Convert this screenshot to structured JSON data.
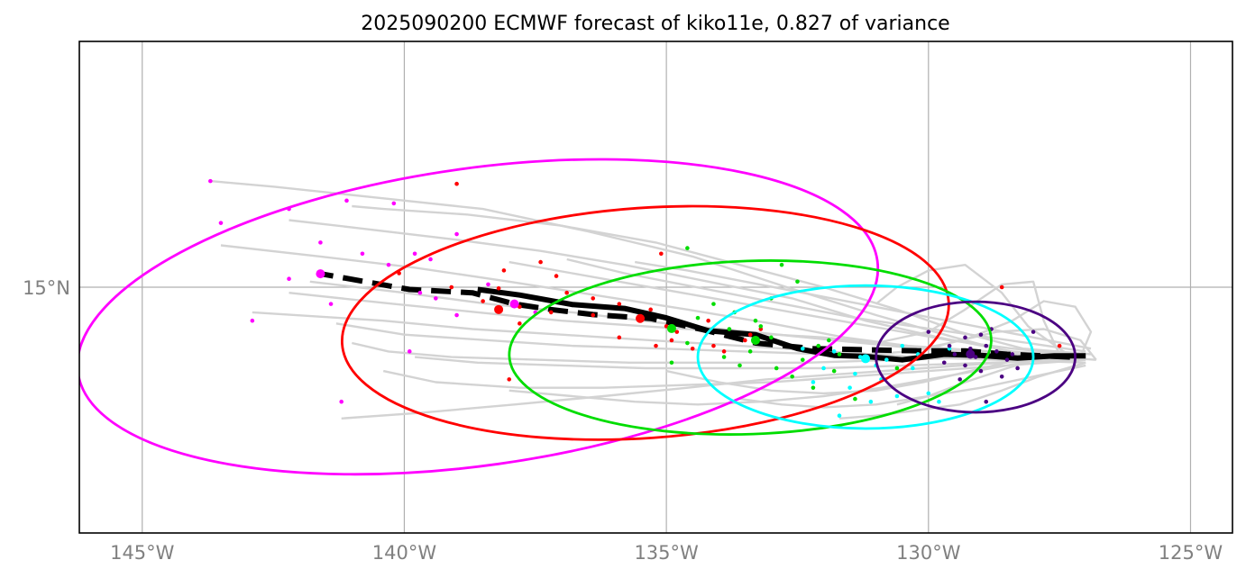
{
  "chart_data": {
    "type": "scatter",
    "title": "2025090200 ECMWF forecast of kiko11e, 0.827 of variance",
    "xlim": [
      -146.2,
      -124.2
    ],
    "ylim": [
      10.6,
      19.4
    ],
    "grid": true,
    "x_ticks": [
      {
        "value": -145,
        "label": "145°W"
      },
      {
        "value": -140,
        "label": "140°W"
      },
      {
        "value": -135,
        "label": "135°W"
      },
      {
        "value": -130,
        "label": "130°W"
      },
      {
        "value": -125,
        "label": "125°W"
      }
    ],
    "y_ticks": [
      {
        "value": 15,
        "label": "15°N"
      }
    ],
    "mean_track": {
      "color": "#000000",
      "x": [
        -127.0,
        -127.6,
        -128.3,
        -129.0,
        -129.7,
        -130.5,
        -131.2,
        -131.8,
        -132.5,
        -133.3,
        -134.2,
        -135.0,
        -135.8,
        -136.8,
        -137.8,
        -138.6
      ],
      "y": [
        13.77,
        13.77,
        13.73,
        13.78,
        13.8,
        13.7,
        13.76,
        13.78,
        13.9,
        14.15,
        14.22,
        14.45,
        14.62,
        14.69,
        14.86,
        14.96
      ]
    },
    "dashed_track": {
      "color": "#000000",
      "x": [
        -127.3,
        -128.5,
        -129.3,
        -130.2,
        -131.2,
        -132.2,
        -133.3,
        -134.3,
        -135.3,
        -136.4,
        -137.2,
        -137.9,
        -138.7,
        -139.9,
        -141.6
      ],
      "y": [
        13.75,
        13.8,
        13.86,
        13.86,
        13.88,
        13.9,
        14.0,
        14.24,
        14.44,
        14.51,
        14.6,
        14.7,
        14.9,
        14.96,
        15.24
      ]
    },
    "ensemble_members": {
      "color": "#d3d3d3",
      "tracks": [
        {
          "x": [
            -126.8,
            -128.3,
            -129.5,
            -131.0,
            -132.7,
            -134.5,
            -136.5,
            -138.5,
            -140.5,
            -142.5,
            -143.7
          ],
          "y": [
            13.7,
            13.8,
            14.1,
            14.5,
            15.0,
            15.55,
            16.0,
            16.4,
            16.6,
            16.8,
            16.9
          ]
        },
        {
          "x": [
            -126.9,
            -128.2,
            -129.4,
            -130.6,
            -132.0,
            -133.6,
            -135.2,
            -137.0,
            -138.8,
            -140.4,
            -141.0
          ],
          "y": [
            13.8,
            13.9,
            14.2,
            14.6,
            15.0,
            15.4,
            15.8,
            16.1,
            16.3,
            16.4,
            16.45
          ]
        },
        {
          "x": [
            -127.0,
            -128.4,
            -129.8,
            -131.2,
            -132.6,
            -134.2,
            -135.8,
            -137.4,
            -139.0,
            -140.8,
            -142.2
          ],
          "y": [
            13.75,
            13.85,
            14.1,
            14.4,
            14.8,
            15.1,
            15.4,
            15.65,
            15.85,
            16.05,
            16.2
          ]
        },
        {
          "x": [
            -127.1,
            -128.6,
            -130.0,
            -131.6,
            -133.0,
            -134.6,
            -136.3,
            -138.0,
            -139.8,
            -141.6,
            -143.5
          ],
          "y": [
            13.7,
            13.75,
            13.9,
            14.1,
            14.35,
            14.6,
            14.85,
            15.1,
            15.35,
            15.55,
            15.75
          ]
        },
        {
          "x": [
            -127.2,
            -128.7,
            -130.2,
            -131.8,
            -133.4,
            -135.0,
            -136.8,
            -138.4,
            -140.0,
            -141.8
          ],
          "y": [
            13.75,
            13.8,
            13.9,
            14.05,
            14.2,
            14.35,
            14.55,
            14.7,
            14.9,
            15.1
          ]
        },
        {
          "x": [
            -127.2,
            -128.8,
            -130.4,
            -132.0,
            -133.8,
            -135.4,
            -137.0,
            -138.6,
            -140.2,
            -142.2
          ],
          "y": [
            13.8,
            13.85,
            13.95,
            14.1,
            14.2,
            14.3,
            14.4,
            14.55,
            14.7,
            14.9
          ]
        },
        {
          "x": [
            -127.0,
            -128.6,
            -130.2,
            -131.9,
            -133.6,
            -135.3,
            -137.0,
            -138.7,
            -140.4,
            -142.9
          ],
          "y": [
            13.65,
            13.7,
            13.75,
            13.85,
            13.95,
            14.05,
            14.15,
            14.25,
            14.4,
            14.55
          ]
        },
        {
          "x": [
            -127.1,
            -128.7,
            -130.3,
            -131.9,
            -133.5,
            -135.1,
            -136.8,
            -138.4,
            -140.0,
            -141.3
          ],
          "y": [
            13.7,
            13.7,
            13.75,
            13.8,
            13.85,
            13.9,
            13.95,
            14.05,
            14.15,
            14.35
          ]
        },
        {
          "x": [
            -127.3,
            -128.9,
            -130.6,
            -132.3,
            -134.0,
            -135.7,
            -137.4,
            -139.1,
            -140.3,
            -141.0
          ],
          "y": [
            13.75,
            13.75,
            13.7,
            13.65,
            13.65,
            13.65,
            13.7,
            13.75,
            13.85,
            14.0
          ]
        },
        {
          "x": [
            -127.2,
            -128.8,
            -130.4,
            -132.0,
            -133.7,
            -135.4,
            -137.0,
            -138.6,
            -139.8
          ],
          "y": [
            13.7,
            13.65,
            13.6,
            13.55,
            13.55,
            13.55,
            13.6,
            13.65,
            13.75
          ]
        },
        {
          "x": [
            -127.0,
            -128.5,
            -130.0,
            -131.5,
            -133.0,
            -134.6,
            -136.2,
            -137.8,
            -139.4,
            -140.4
          ],
          "y": [
            13.7,
            13.6,
            13.5,
            13.4,
            13.3,
            13.25,
            13.2,
            13.2,
            13.3,
            13.5
          ]
        },
        {
          "x": [
            -127.1,
            -128.6,
            -130.1,
            -131.6,
            -133.1,
            -134.6,
            -136.2,
            -137.9,
            -139.7,
            -141.2
          ],
          "y": [
            13.75,
            13.65,
            13.55,
            13.45,
            13.35,
            13.2,
            13.05,
            12.9,
            12.75,
            12.65
          ]
        },
        {
          "x": [
            -127.3,
            -128.5,
            -129.7,
            -130.9,
            -132.0,
            -133.2,
            -134.4,
            -135.6,
            -136.8,
            -138.0
          ],
          "y": [
            13.8,
            13.6,
            13.4,
            13.2,
            13.05,
            12.95,
            12.9,
            12.95,
            13.05,
            13.15
          ]
        },
        {
          "x": [
            -127.4,
            -128.3,
            -129.2,
            -130.1,
            -131.0,
            -132.0,
            -133.0,
            -134.0,
            -135.0
          ],
          "y": [
            13.85,
            13.7,
            13.5,
            13.3,
            13.15,
            13.1,
            13.15,
            13.3,
            13.5
          ]
        },
        {
          "x": [
            -126.9,
            -128.0,
            -129.1,
            -130.2,
            -131.3,
            -132.4,
            -133.5,
            -134.6,
            -135.6
          ],
          "y": [
            13.9,
            14.1,
            14.3,
            14.5,
            14.7,
            14.9,
            15.1,
            15.3,
            15.45
          ]
        },
        {
          "x": [
            -127.0,
            -128.1,
            -129.2,
            -130.3,
            -131.4,
            -132.5,
            -133.6,
            -134.7,
            -135.8,
            -136.9
          ],
          "y": [
            13.85,
            14.0,
            14.15,
            14.3,
            14.45,
            14.65,
            14.85,
            15.05,
            15.25,
            15.5
          ]
        },
        {
          "x": [
            -127.2,
            -128.4,
            -129.6,
            -130.8,
            -132.0,
            -133.2,
            -134.4,
            -135.6,
            -136.8,
            -138.0
          ],
          "y": [
            13.8,
            13.9,
            14.05,
            14.25,
            14.45,
            14.65,
            14.85,
            15.05,
            15.25,
            15.45
          ]
        },
        {
          "x": [
            -127.2,
            -128.1,
            -128.6,
            -129.3,
            -130.0,
            -130.6,
            -131.0
          ],
          "y": [
            13.7,
            14.3,
            14.9,
            15.4,
            15.3,
            15.0,
            14.7
          ]
        },
        {
          "x": [
            -127.5,
            -127.8,
            -128.0,
            -128.6,
            -129.3,
            -130.0,
            -131.0
          ],
          "y": [
            13.8,
            14.4,
            15.1,
            15.05,
            14.6,
            14.2,
            14.0
          ]
        },
        {
          "x": [
            -127.1,
            -126.9,
            -127.2,
            -127.8,
            -128.4,
            -129.2,
            -130.0
          ],
          "y": [
            13.75,
            14.2,
            14.65,
            14.75,
            14.4,
            14.1,
            13.9
          ]
        },
        {
          "x": [
            -126.8,
            -127.1,
            -127.8,
            -128.7,
            -129.6,
            -130.4,
            -131.1
          ],
          "y": [
            13.7,
            14.05,
            14.25,
            14.2,
            14.0,
            13.85,
            13.8
          ]
        },
        {
          "x": [
            -127.0,
            -128.0,
            -129.0,
            -130.0,
            -131.0,
            -132.0,
            -132.8,
            -133.6
          ],
          "y": [
            13.6,
            13.4,
            13.2,
            13.05,
            12.9,
            12.85,
            12.9,
            13.0
          ]
        },
        {
          "x": [
            -127.0,
            -127.9,
            -128.6,
            -129.4,
            -130.2,
            -131.0,
            -131.7
          ],
          "y": [
            13.65,
            13.4,
            13.15,
            12.9,
            12.8,
            12.7,
            12.65
          ]
        },
        {
          "x": [
            -127.6,
            -128.5,
            -129.3,
            -130.0,
            -130.6
          ],
          "y": [
            13.8,
            13.55,
            13.3,
            13.05,
            12.9
          ]
        }
      ]
    },
    "forecast_points": [
      {
        "name": "magenta",
        "color": "#ff00ff",
        "x": [
          -143.7,
          -142.2,
          -141.1,
          -140.2,
          -139.0,
          -143.5,
          -141.6,
          -140.8,
          -139.5,
          -142.2,
          -141.4,
          -142.9,
          -139.9,
          -141.2,
          -139.7,
          -139.4,
          -138.4,
          -137.5,
          -139.0,
          -139.8,
          -140.3
        ],
        "y": [
          16.9,
          16.4,
          16.55,
          16.5,
          15.95,
          16.15,
          15.8,
          15.6,
          15.5,
          15.15,
          14.7,
          14.4,
          13.85,
          12.95,
          14.9,
          14.8,
          15.05,
          14.55,
          14.5,
          15.6,
          15.4
        ]
      },
      {
        "name": "red",
        "color": "#ff0000",
        "x": [
          -139.0,
          -135.1,
          -137.4,
          -138.1,
          -137.1,
          -138.2,
          -136.9,
          -136.4,
          -135.9,
          -135.3,
          -134.2,
          -133.2,
          -133.5,
          -134.1,
          -134.8,
          -135.0,
          -136.4,
          -137.2,
          -137.8,
          -138.5,
          -139.1,
          -140.1,
          -135.9,
          -135.2,
          -134.9,
          -134.5,
          -133.4,
          -133.9,
          -128.6,
          -127.5,
          -137.8,
          -138.0
        ],
        "y": [
          16.85,
          15.6,
          15.45,
          15.3,
          15.2,
          14.98,
          14.9,
          14.8,
          14.7,
          14.6,
          14.4,
          14.25,
          14.05,
          13.95,
          14.2,
          14.3,
          14.5,
          14.55,
          14.65,
          14.75,
          15.0,
          15.25,
          14.1,
          13.95,
          14.05,
          13.9,
          14.15,
          13.85,
          15.0,
          13.95,
          14.35,
          13.35
        ]
      },
      {
        "name": "green",
        "color": "#00dd00",
        "x": [
          -134.6,
          -133.7,
          -133.3,
          -132.8,
          -132.5,
          -133.0,
          -134.1,
          -134.4,
          -133.8,
          -133.0,
          -132.1,
          -131.7,
          -132.4,
          -133.4,
          -133.6,
          -134.9,
          -132.6,
          -132.2,
          -131.4,
          -131.8,
          -132.9,
          -133.9,
          -134.6,
          -133.2,
          -131.9,
          -130.6
        ],
        "y": [
          15.7,
          14.55,
          14.4,
          15.4,
          15.1,
          14.8,
          14.7,
          14.45,
          14.25,
          14.1,
          13.95,
          13.8,
          13.7,
          13.85,
          13.6,
          13.65,
          13.4,
          13.2,
          13.0,
          13.5,
          13.55,
          13.75,
          14.0,
          14.3,
          14.05,
          13.55
        ]
      },
      {
        "name": "cyan",
        "color": "#00ffff",
        "x": [
          -132.4,
          -131.8,
          -131.3,
          -130.8,
          -130.2,
          -129.6,
          -130.3,
          -130.9,
          -131.5,
          -132.0,
          -131.1,
          -130.6,
          -130.0,
          -131.4,
          -132.2,
          -131.7,
          -129.8,
          -131.0,
          -130.5
        ],
        "y": [
          13.9,
          13.85,
          13.75,
          13.7,
          13.8,
          13.9,
          13.55,
          13.35,
          13.2,
          13.55,
          12.95,
          13.05,
          13.1,
          13.45,
          13.3,
          12.7,
          12.95,
          13.6,
          13.95
        ]
      },
      {
        "name": "indigo",
        "color": "#4b0082",
        "x": [
          -129.3,
          -128.9,
          -128.7,
          -129.1,
          -129.5,
          -128.5,
          -128.3,
          -129.0,
          -129.7,
          -129.2,
          -128.8,
          -128.6,
          -129.4,
          -129.0,
          -128.0,
          -129.6,
          -128.9,
          -129.3,
          -128.4,
          -130.0
        ],
        "y": [
          14.1,
          13.95,
          13.85,
          13.75,
          13.8,
          13.7,
          13.55,
          13.5,
          13.65,
          13.9,
          14.25,
          13.4,
          13.35,
          14.15,
          14.2,
          13.95,
          12.95,
          13.6,
          13.8,
          14.2
        ]
      }
    ],
    "center_markers": [
      {
        "x": -141.6,
        "y": 15.24,
        "color": "#ff00ff"
      },
      {
        "x": -137.9,
        "y": 14.7,
        "color": "#ff00ff"
      },
      {
        "x": -138.2,
        "y": 14.6,
        "color": "#ff0000"
      },
      {
        "x": -135.5,
        "y": 14.44,
        "color": "#ff0000"
      },
      {
        "x": -133.3,
        "y": 14.05,
        "color": "#00dd00"
      },
      {
        "x": -134.9,
        "y": 14.26,
        "color": "#00dd00"
      },
      {
        "x": -131.2,
        "y": 13.72,
        "color": "#00ffff"
      },
      {
        "x": -129.2,
        "y": 13.8,
        "color": "#4b0082"
      }
    ],
    "ellipses": [
      {
        "color": "#ff00ff",
        "cx": -138.6,
        "cy": 14.47,
        "rx": 7.7,
        "ry": 2.66,
        "angle": -8
      },
      {
        "color": "#ff0000",
        "cx": -135.4,
        "cy": 14.36,
        "rx": 5.8,
        "ry": 2.06,
        "angle": -4
      },
      {
        "color": "#00dd00",
        "cx": -133.4,
        "cy": 13.92,
        "rx": 4.6,
        "ry": 1.55,
        "angle": -2
      },
      {
        "color": "#00ffff",
        "cx": -131.2,
        "cy": 13.75,
        "rx": 3.2,
        "ry": 1.28,
        "angle": 0
      },
      {
        "color": "#4b0082",
        "cx": -129.1,
        "cy": 13.75,
        "rx": 1.9,
        "ry": 0.99,
        "angle": 0
      }
    ]
  }
}
